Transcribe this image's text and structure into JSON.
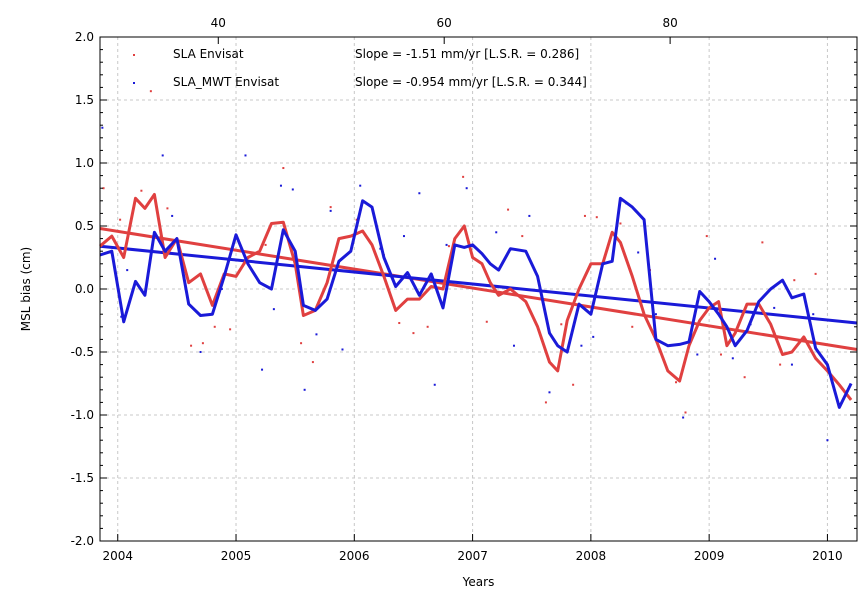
{
  "chart_data": {
    "type": "line",
    "title": "",
    "xlabel": "Years",
    "ylabel": "MSL bias (cm)",
    "xlim": [
      2003.85,
      2010.25
    ],
    "ylim": [
      -2.0,
      2.0
    ],
    "grid": true,
    "x_ticks": [
      {
        "value": 2004,
        "label": "2004"
      },
      {
        "value": 2005,
        "label": "2005"
      },
      {
        "value": 2006,
        "label": "2006"
      },
      {
        "value": 2007,
        "label": "2007"
      },
      {
        "value": 2008,
        "label": "2008"
      },
      {
        "value": 2009,
        "label": "2009"
      },
      {
        "value": 2010,
        "label": "2010"
      }
    ],
    "x2_ticks": [
      {
        "value": 2004.85,
        "label": "40"
      },
      {
        "value": 2006.76,
        "label": "60"
      },
      {
        "value": 2008.67,
        "label": "80"
      }
    ],
    "y_ticks": [
      {
        "value": 2.0,
        "label": "2.0"
      },
      {
        "value": 1.5,
        "label": "1.5"
      },
      {
        "value": 1.0,
        "label": "1.0"
      },
      {
        "value": 0.5,
        "label": "0.5"
      },
      {
        "value": 0.0,
        "label": "0.0"
      },
      {
        "value": -0.5,
        "label": "-0.5"
      },
      {
        "value": -1.0,
        "label": "-1.0"
      },
      {
        "value": -1.5,
        "label": "-1.5"
      },
      {
        "value": -2.0,
        "label": "-2.0"
      }
    ],
    "legend": {
      "placement": "top-left",
      "entries": [
        {
          "label": "SLA Envisat",
          "slope_text": "Slope = -1.51 mm/yr [L.S.R. = 0.286]",
          "color": "#e04040"
        },
        {
          "label": "SLA_MWT Envisat",
          "slope_text": "Slope = -0.954 mm/yr [L.S.R. = 0.344]",
          "color": "#1a1ad8"
        }
      ]
    },
    "series": [
      {
        "name": "SLA Envisat",
        "color": "#e04040",
        "x": [
          2003.85,
          2003.95,
          2004.05,
          2004.15,
          2004.23,
          2004.31,
          2004.4,
          2004.5,
          2004.6,
          2004.7,
          2004.8,
          2004.9,
          2005.0,
          2005.1,
          2005.2,
          2005.3,
          2005.4,
          2005.5,
          2005.57,
          2005.67,
          2005.77,
          2005.87,
          2005.97,
          2006.07,
          2006.15,
          2006.25,
          2006.35,
          2006.45,
          2006.55,
          2006.65,
          2006.75,
          2006.85,
          2006.93,
          2007.0,
          2007.08,
          2007.15,
          2007.22,
          2007.32,
          2007.45,
          2007.55,
          2007.65,
          2007.72,
          2007.8,
          2007.9,
          2008.0,
          2008.1,
          2008.18,
          2008.25,
          2008.35,
          2008.45,
          2008.55,
          2008.65,
          2008.75,
          2008.83,
          2008.92,
          2009.0,
          2009.08,
          2009.15,
          2009.22,
          2009.32,
          2009.42,
          2009.52,
          2009.62,
          2009.7,
          2009.8,
          2009.9,
          2010.0,
          2010.1,
          2010.2
        ],
        "y": [
          0.34,
          0.42,
          0.25,
          0.72,
          0.64,
          0.75,
          0.25,
          0.4,
          0.05,
          0.12,
          -0.13,
          0.12,
          0.1,
          0.25,
          0.3,
          0.52,
          0.53,
          0.2,
          -0.21,
          -0.17,
          0.05,
          0.4,
          0.42,
          0.46,
          0.35,
          0.1,
          -0.17,
          -0.08,
          -0.08,
          0.02,
          0.0,
          0.4,
          0.5,
          0.25,
          0.2,
          0.05,
          -0.05,
          0.0,
          -0.1,
          -0.3,
          -0.58,
          -0.65,
          -0.25,
          0.0,
          0.2,
          0.2,
          0.45,
          0.37,
          0.1,
          -0.2,
          -0.4,
          -0.65,
          -0.73,
          -0.45,
          -0.25,
          -0.15,
          -0.1,
          -0.45,
          -0.35,
          -0.12,
          -0.12,
          -0.28,
          -0.52,
          -0.5,
          -0.38,
          -0.55,
          -0.65,
          -0.76,
          -0.88
        ]
      },
      {
        "name": "SLA_MWT Envisat",
        "color": "#1a1ad8",
        "x": [
          2003.85,
          2003.95,
          2004.05,
          2004.15,
          2004.23,
          2004.31,
          2004.4,
          2004.5,
          2004.6,
          2004.7,
          2004.8,
          2004.9,
          2005.0,
          2005.1,
          2005.2,
          2005.3,
          2005.4,
          2005.5,
          2005.57,
          2005.67,
          2005.77,
          2005.87,
          2005.97,
          2006.07,
          2006.15,
          2006.25,
          2006.35,
          2006.45,
          2006.55,
          2006.65,
          2006.75,
          2006.85,
          2006.93,
          2007.0,
          2007.08,
          2007.15,
          2007.22,
          2007.32,
          2007.45,
          2007.55,
          2007.65,
          2007.72,
          2007.8,
          2007.9,
          2008.0,
          2008.1,
          2008.18,
          2008.25,
          2008.35,
          2008.45,
          2008.55,
          2008.65,
          2008.75,
          2008.83,
          2008.92,
          2009.0,
          2009.08,
          2009.15,
          2009.22,
          2009.32,
          2009.42,
          2009.52,
          2009.62,
          2009.7,
          2009.8,
          2009.9,
          2010.0,
          2010.1,
          2010.2
        ],
        "y": [
          0.27,
          0.3,
          -0.26,
          0.06,
          -0.05,
          0.45,
          0.3,
          0.4,
          -0.12,
          -0.21,
          -0.2,
          0.1,
          0.43,
          0.2,
          0.05,
          0.0,
          0.47,
          0.3,
          -0.13,
          -0.17,
          -0.08,
          0.22,
          0.3,
          0.7,
          0.65,
          0.25,
          0.02,
          0.13,
          -0.05,
          0.12,
          -0.15,
          0.35,
          0.33,
          0.35,
          0.28,
          0.2,
          0.15,
          0.32,
          0.3,
          0.1,
          -0.35,
          -0.45,
          -0.5,
          -0.12,
          -0.2,
          0.2,
          0.22,
          0.72,
          0.65,
          0.55,
          -0.4,
          -0.45,
          -0.44,
          -0.42,
          -0.02,
          -0.1,
          -0.2,
          -0.3,
          -0.45,
          -0.33,
          -0.1,
          0.0,
          0.07,
          -0.07,
          -0.04,
          -0.47,
          -0.6,
          -0.94,
          -0.75
        ]
      },
      {
        "name": "",
        "style": "trend",
        "color": "#e04040",
        "x": [
          2003.85,
          2010.25
        ],
        "y": [
          0.48,
          -0.48
        ]
      },
      {
        "name": "",
        "style": "trend",
        "color": "#1a1ad8",
        "x": [
          2003.85,
          2010.25
        ],
        "y": [
          0.34,
          -0.27
        ]
      },
      {
        "name": "",
        "style": "scatter",
        "color": "#e04040",
        "x": [
          2003.88,
          2004.02,
          2004.2,
          2004.28,
          2004.42,
          2004.62,
          2004.72,
          2004.82,
          2004.95,
          2005.25,
          2005.4,
          2005.55,
          2005.65,
          2005.8,
          2006.02,
          2006.25,
          2006.38,
          2006.5,
          2006.62,
          2006.8,
          2006.92,
          2007.12,
          2007.3,
          2007.42,
          2007.62,
          2007.75,
          2007.85,
          2007.95,
          2008.05,
          2008.25,
          2008.35,
          2008.5,
          2008.72,
          2008.8,
          2008.98,
          2009.1,
          2009.3,
          2009.45,
          2009.6,
          2009.72,
          2009.9
        ],
        "y": [
          0.8,
          0.55,
          0.78,
          1.57,
          0.64,
          -0.45,
          -0.43,
          -0.3,
          -0.32,
          0.35,
          0.96,
          -0.43,
          -0.58,
          0.65,
          0.55,
          0.27,
          -0.27,
          -0.35,
          -0.3,
          0.34,
          0.89,
          -0.26,
          0.63,
          0.42,
          -0.9,
          -0.28,
          -0.76,
          0.58,
          0.57,
          0.52,
          -0.3,
          0.15,
          -0.74,
          -0.98,
          0.42,
          -0.52,
          -0.7,
          0.37,
          -0.6,
          0.07,
          0.12
        ]
      },
      {
        "name": "",
        "style": "scatter",
        "color": "#1a1ad8",
        "x": [
          2003.87,
          2004.03,
          2004.08,
          2004.38,
          2004.46,
          2004.7,
          2004.88,
          2005.08,
          2005.22,
          2005.32,
          2005.38,
          2005.48,
          2005.58,
          2005.68,
          2005.8,
          2005.9,
          2006.05,
          2006.22,
          2006.42,
          2006.55,
          2006.68,
          2006.78,
          2006.95,
          2007.2,
          2007.35,
          2007.48,
          2007.65,
          2007.78,
          2007.92,
          2008.02,
          2008.3,
          2008.4,
          2008.55,
          2008.78,
          2008.9,
          2009.05,
          2009.2,
          2009.35,
          2009.55,
          2009.7,
          2009.88,
          2010.0
        ],
        "y": [
          1.28,
          -0.22,
          0.15,
          1.06,
          0.58,
          -0.5,
          0.0,
          1.06,
          -0.64,
          -0.16,
          0.82,
          0.79,
          -0.8,
          -0.36,
          0.62,
          -0.48,
          0.82,
          0.32,
          0.42,
          0.76,
          -0.76,
          0.35,
          0.8,
          0.45,
          -0.45,
          0.58,
          -0.82,
          -0.11,
          -0.45,
          -0.38,
          0.68,
          0.29,
          -0.2,
          -1.02,
          -0.52,
          0.24,
          -0.55,
          -0.28,
          -0.15,
          -0.6,
          -0.2,
          -1.2
        ]
      }
    ]
  }
}
